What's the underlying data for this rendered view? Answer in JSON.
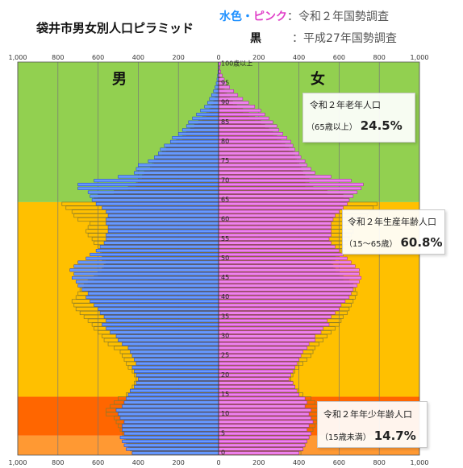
{
  "title": "袋井市男女別人口ピラミッド",
  "legend": {
    "current_cyan": "水色",
    "dot": "・",
    "current_pink": "ピンク",
    "current_sep": "：",
    "current_desc": "令和２年国勢調査",
    "past_black": "黒",
    "past_sep": "：",
    "past_desc": "平成27年国勢調査"
  },
  "labels": {
    "male": "男",
    "female": "女"
  },
  "callouts": {
    "elderly": {
      "title": "令和２年老年人口",
      "range": "（65歳以上）",
      "percent": "24.5%"
    },
    "working": {
      "title": "令和２年生産年齢人口",
      "range": "（15～65歳）",
      "percent": "60.8%"
    },
    "youth": {
      "title": "令和２年年少年齢人口",
      "range": "（15歳未満）",
      "percent": "14.7%"
    }
  },
  "colors": {
    "male": "#6699ff",
    "male_edge": "#1f3fbf",
    "female": "#ee82ee",
    "female_edge": "#a020a0",
    "prev": "#8a7a2a",
    "band_elderly": "#92d050",
    "band_working": "#ffc000",
    "band_youth": "#ff6600",
    "band_youth_low": "#ff9933"
  },
  "chart_data": {
    "type": "bar",
    "orientation": "horizontal",
    "title": "袋井市男女別人口ピラミッド",
    "ages": [
      0,
      1,
      2,
      3,
      4,
      5,
      6,
      7,
      8,
      9,
      10,
      11,
      12,
      13,
      14,
      15,
      16,
      17,
      18,
      19,
      20,
      21,
      22,
      23,
      24,
      25,
      26,
      27,
      28,
      29,
      30,
      31,
      32,
      33,
      34,
      35,
      36,
      37,
      38,
      39,
      40,
      41,
      42,
      43,
      44,
      45,
      46,
      47,
      48,
      49,
      50,
      51,
      52,
      53,
      54,
      55,
      56,
      57,
      58,
      59,
      60,
      61,
      62,
      63,
      64,
      65,
      66,
      67,
      68,
      69,
      70,
      71,
      72,
      73,
      74,
      75,
      76,
      77,
      78,
      79,
      80,
      81,
      82,
      83,
      84,
      85,
      86,
      87,
      88,
      89,
      90,
      91,
      92,
      93,
      94,
      95,
      96,
      97,
      98,
      99,
      100
    ],
    "age_tick_labels": [
      "0",
      "5",
      "10",
      "15",
      "20",
      "25",
      "30",
      "35",
      "40",
      "45",
      "50",
      "55",
      "60",
      "65",
      "70",
      "75",
      "80",
      "85",
      "90",
      "95",
      "100歳以上"
    ],
    "x_tick_labels": [
      "1,000",
      "800",
      "600",
      "400",
      "200",
      "0",
      "200",
      "400",
      "600",
      "800",
      "1,000"
    ],
    "xlim": [
      -1000,
      1000
    ],
    "series": [
      {
        "name": "男",
        "values": [
          430,
          460,
          470,
          480,
          490,
          470,
          480,
          480,
          470,
          490,
          500,
          510,
          480,
          470,
          460,
          450,
          440,
          420,
          410,
          400,
          410,
          420,
          430,
          410,
          420,
          430,
          440,
          450,
          480,
          500,
          510,
          540,
          560,
          580,
          560,
          570,
          590,
          600,
          620,
          640,
          660,
          650,
          680,
          700,
          710,
          730,
          720,
          740,
          720,
          700,
          660,
          640,
          610,
          590,
          570,
          560,
          560,
          550,
          550,
          560,
          560,
          550,
          560,
          580,
          610,
          630,
          640,
          650,
          700,
          700,
          620,
          500,
          420,
          410,
          400,
          350,
          320,
          300,
          290,
          270,
          240,
          230,
          200,
          180,
          160,
          150,
          130,
          110,
          90,
          70,
          55,
          45,
          35,
          25,
          18,
          12,
          8,
          5,
          3,
          2,
          2
        ]
      },
      {
        "name": "女",
        "values": [
          400,
          420,
          430,
          440,
          450,
          460,
          440,
          450,
          470,
          460,
          450,
          460,
          430,
          440,
          430,
          400,
          390,
          380,
          370,
          350,
          360,
          370,
          380,
          390,
          400,
          410,
          420,
          440,
          450,
          480,
          480,
          510,
          520,
          550,
          540,
          560,
          580,
          600,
          610,
          630,
          650,
          660,
          670,
          690,
          700,
          710,
          700,
          700,
          680,
          660,
          640,
          620,
          600,
          580,
          560,
          550,
          560,
          560,
          560,
          560,
          570,
          580,
          600,
          620,
          640,
          650,
          670,
          690,
          710,
          720,
          660,
          560,
          480,
          460,
          440,
          430,
          410,
          400,
          380,
          370,
          360,
          340,
          320,
          300,
          290,
          270,
          250,
          230,
          210,
          180,
          150,
          120,
          95,
          75,
          55,
          38,
          28,
          18,
          10,
          6,
          10
        ]
      },
      {
        "name": "男 prev",
        "values": [
          430,
          440,
          450,
          460,
          470,
          480,
          490,
          500,
          510,
          520,
          560,
          560,
          540,
          520,
          500,
          460,
          440,
          430,
          420,
          410,
          420,
          430,
          450,
          460,
          470,
          480,
          490,
          520,
          550,
          570,
          580,
          600,
          620,
          630,
          650,
          670,
          690,
          710,
          720,
          730,
          710,
          700,
          690,
          670,
          650,
          620,
          600,
          580,
          570,
          560,
          580,
          580,
          590,
          600,
          620,
          630,
          650,
          660,
          650,
          640,
          700,
          720,
          730,
          760,
          780,
          620,
          600,
          520,
          450,
          410,
          400,
          380,
          370,
          340,
          330,
          320,
          310,
          280,
          260,
          240,
          210,
          180,
          160,
          140,
          120,
          100,
          80,
          60,
          45,
          35,
          25,
          18,
          12,
          8,
          5,
          3,
          2,
          1,
          1,
          1,
          1
        ]
      },
      {
        "name": "女 prev",
        "values": [
          410,
          420,
          430,
          440,
          450,
          460,
          470,
          480,
          490,
          500,
          510,
          520,
          500,
          480,
          460,
          420,
          400,
          380,
          370,
          360,
          370,
          380,
          400,
          420,
          440,
          460,
          470,
          480,
          500,
          520,
          540,
          560,
          580,
          600,
          610,
          620,
          640,
          650,
          660,
          670,
          680,
          690,
          680,
          670,
          650,
          620,
          600,
          580,
          570,
          560,
          580,
          600,
          610,
          620,
          640,
          650,
          660,
          670,
          660,
          650,
          720,
          740,
          750,
          770,
          790,
          650,
          620,
          540,
          470,
          430,
          450,
          430,
          420,
          410,
          400,
          390,
          380,
          370,
          350,
          330,
          310,
          290,
          270,
          250,
          230,
          210,
          180,
          150,
          120,
          90,
          70,
          55,
          40,
          28,
          18,
          12,
          8,
          5,
          3,
          2,
          2
        ]
      }
    ],
    "age_groups": [
      {
        "name": "令和２年老年人口",
        "range": "（65歳以上）",
        "percent": "24.5%"
      },
      {
        "name": "令和２年生産年齢人口",
        "range": "（15～65歳）",
        "percent": "60.8%"
      },
      {
        "name": "令和２年年少年齢人口",
        "range": "（15歳未満）",
        "percent": "14.7%"
      }
    ]
  }
}
